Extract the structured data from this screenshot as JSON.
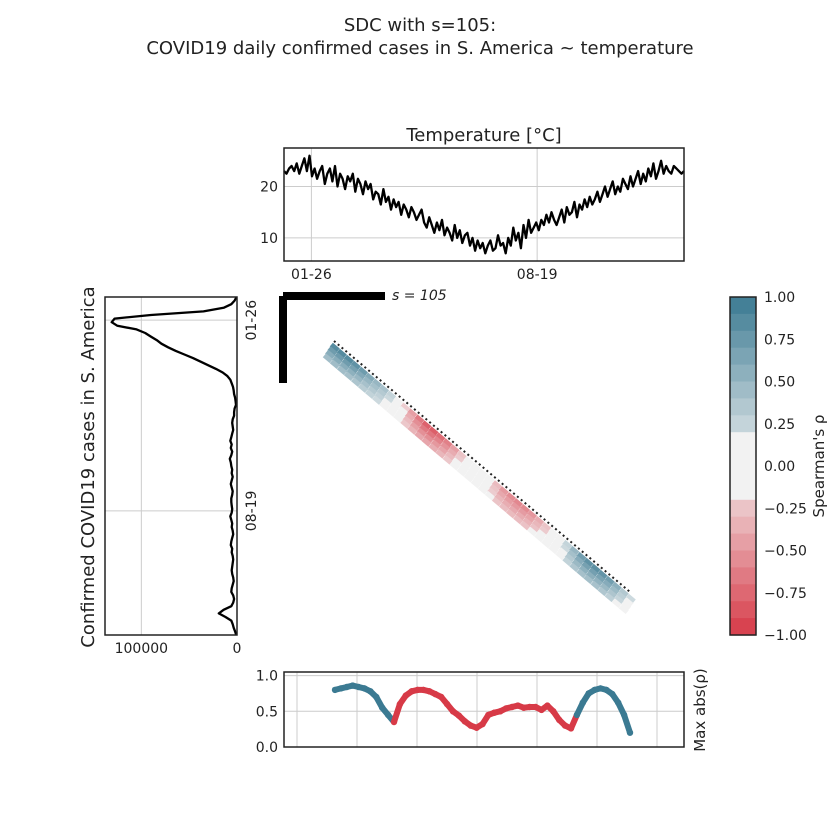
{
  "title_line1": "SDC with s=105:",
  "title_line2": "COVID19 daily confirmed cases in S. America ~ temperature",
  "colors": {
    "positive": "#3b7a92",
    "negative": "#d73a47",
    "neutral": "#f2f2f2",
    "line": "#000000",
    "grid": "#cccccc"
  },
  "chart_data": [
    {
      "type": "line",
      "panel": "top",
      "title": "Temperature [°C]",
      "xlabel": "",
      "ylabel": "",
      "x_tick_labels": [
        "01-26",
        "08-19"
      ],
      "y_ticks": [
        10,
        20
      ],
      "ylim": [
        5.5,
        27.5
      ],
      "x_range_days": 365,
      "tick_days": [
        25,
        231
      ],
      "y_points": [
        23.0,
        22.5,
        23.5,
        24.0,
        23.0,
        24.5,
        22.5,
        24.0,
        25.5,
        23.0,
        26.0,
        22.0,
        23.5,
        21.5,
        23.0,
        24.0,
        20.5,
        22.5,
        23.5,
        21.0,
        24.0,
        20.0,
        22.5,
        21.5,
        19.5,
        22.0,
        21.0,
        22.5,
        19.0,
        21.5,
        20.5,
        18.5,
        21.0,
        19.5,
        20.5,
        17.5,
        19.0,
        18.5,
        16.5,
        19.5,
        17.0,
        18.0,
        15.5,
        17.5,
        16.0,
        17.0,
        14.5,
        16.5,
        15.5,
        14.0,
        16.0,
        15.0,
        13.5,
        14.5,
        15.5,
        13.0,
        12.0,
        14.0,
        12.5,
        11.0,
        13.0,
        11.5,
        13.5,
        10.5,
        12.0,
        11.0,
        9.5,
        12.5,
        10.0,
        11.5,
        9.0,
        10.5,
        11.0,
        8.5,
        10.0,
        7.5,
        9.5,
        8.0,
        9.0,
        7.0,
        8.5,
        9.5,
        7.5,
        8.0,
        10.5,
        8.5,
        9.0,
        7.0,
        10.0,
        8.5,
        12.0,
        9.5,
        11.0,
        8.0,
        12.5,
        10.0,
        13.5,
        11.0,
        12.0,
        13.0,
        11.5,
        13.5,
        12.5,
        14.5,
        13.0,
        15.0,
        13.5,
        12.5,
        14.0,
        15.5,
        13.0,
        16.0,
        14.5,
        15.0,
        17.0,
        14.0,
        16.5,
        15.5,
        17.5,
        16.0,
        18.0,
        16.5,
        17.5,
        19.0,
        17.0,
        18.5,
        20.0,
        18.0,
        19.5,
        21.0,
        18.5,
        20.0,
        19.0,
        21.5,
        20.5,
        19.5,
        22.0,
        20.0,
        21.5,
        23.0,
        20.5,
        22.5,
        21.0,
        23.5,
        22.0,
        24.5,
        21.5,
        23.0,
        25.0,
        22.5,
        24.0,
        23.0,
        22.5,
        24.0,
        23.5,
        23.0,
        22.5,
        23.0
      ]
    },
    {
      "type": "line",
      "panel": "left",
      "ylabel": "Confirmed COVID19 cases in S. America",
      "x_tick_labels": [
        "100000",
        "0"
      ],
      "y_tick_labels": [
        "01-26",
        "08-19"
      ],
      "xlim": [
        138000,
        0
      ],
      "y_range_days": 365,
      "tick_days": [
        25,
        231
      ],
      "x_points": [
        500,
        2500,
        6000,
        14000,
        35000,
        90000,
        128000,
        131000,
        125000,
        105000,
        96000,
        90000,
        84000,
        79000,
        72000,
        64000,
        55000,
        46000,
        38000,
        30000,
        22000,
        15000,
        10000,
        7000,
        5500,
        4200,
        3500,
        3000,
        2000,
        1500,
        1000,
        2500,
        3000,
        3000,
        4500,
        5000,
        4500,
        4000,
        5000,
        6000,
        7000,
        5500,
        6500,
        5000,
        6000,
        7500,
        6500,
        6000,
        5000,
        5500,
        4500,
        5500,
        6500,
        5500,
        4500,
        5000,
        6000,
        6000,
        5500,
        5000,
        5500,
        7000,
        6000,
        5000,
        5500,
        4500,
        4000,
        5000,
        6000,
        6500,
        5000,
        5500,
        4500,
        4000,
        4500,
        5000,
        5500,
        5000,
        4000,
        3500,
        4500,
        5500,
        6000,
        4000,
        3000,
        4000,
        6000,
        14000,
        19000,
        12000,
        6000,
        4500,
        3500,
        2000,
        800
      ]
    },
    {
      "type": "heatmap",
      "panel": "main",
      "title": "",
      "annotation": "s = 105",
      "colorbar_label": "Spearman's ρ",
      "colorbar_ticks": [
        "1.00",
        "0.75",
        "0.50",
        "0.25",
        "0.00",
        "−0.25",
        "−0.50",
        "−0.75",
        "−1.00"
      ],
      "colorbar_levels": [
        1.0,
        0.9,
        0.8,
        0.7,
        0.6,
        0.5,
        0.4,
        0.3,
        0.2,
        0.1,
        0.0,
        -0.1,
        -0.2,
        -0.3,
        -0.4,
        -0.5,
        -0.6,
        -0.7,
        -0.8,
        -0.9,
        -1.0
      ],
      "diagonal_rho": [
        0.85,
        0.86,
        0.85,
        0.8,
        0.72,
        0.6,
        0.5,
        0.4,
        0.25,
        0.05,
        -0.2,
        -0.45,
        -0.65,
        -0.78,
        -0.8,
        -0.72,
        -0.62,
        -0.45,
        -0.25,
        -0.05,
        0.05,
        0.0,
        -0.1,
        -0.3,
        -0.48,
        -0.55,
        -0.58,
        -0.56,
        -0.5,
        -0.38,
        -0.25,
        -0.1,
        0.05,
        0.25,
        0.5,
        0.7,
        0.8,
        0.82,
        0.78,
        0.7,
        0.55,
        0.35,
        0.2
      ]
    },
    {
      "type": "scatter",
      "panel": "bottom",
      "ylabel": "Max abs(ρ)",
      "y_ticks": [
        "0.0",
        "0.5",
        "1.0"
      ],
      "ylim": [
        0,
        1.05
      ],
      "points": [
        0.8,
        0.82,
        0.84,
        0.86,
        0.84,
        0.82,
        0.78,
        0.7,
        0.55,
        0.45,
        0.35,
        0.6,
        0.72,
        0.78,
        0.8,
        0.8,
        0.78,
        0.74,
        0.7,
        0.6,
        0.5,
        0.44,
        0.36,
        0.3,
        0.27,
        0.32,
        0.45,
        0.48,
        0.5,
        0.54,
        0.56,
        0.58,
        0.55,
        0.56,
        0.56,
        0.52,
        0.58,
        0.5,
        0.38,
        0.3,
        0.26,
        0.45,
        0.62,
        0.75,
        0.8,
        0.82,
        0.8,
        0.74,
        0.62,
        0.45,
        0.2
      ],
      "signs": [
        1,
        1,
        1,
        1,
        1,
        1,
        1,
        1,
        1,
        1,
        -1,
        -1,
        -1,
        -1,
        -1,
        -1,
        -1,
        -1,
        -1,
        -1,
        -1,
        -1,
        -1,
        -1,
        -1,
        -1,
        -1,
        -1,
        -1,
        -1,
        -1,
        -1,
        -1,
        -1,
        -1,
        -1,
        -1,
        -1,
        -1,
        -1,
        -1,
        1,
        1,
        1,
        1,
        1,
        1,
        1,
        1,
        1,
        1
      ]
    }
  ]
}
